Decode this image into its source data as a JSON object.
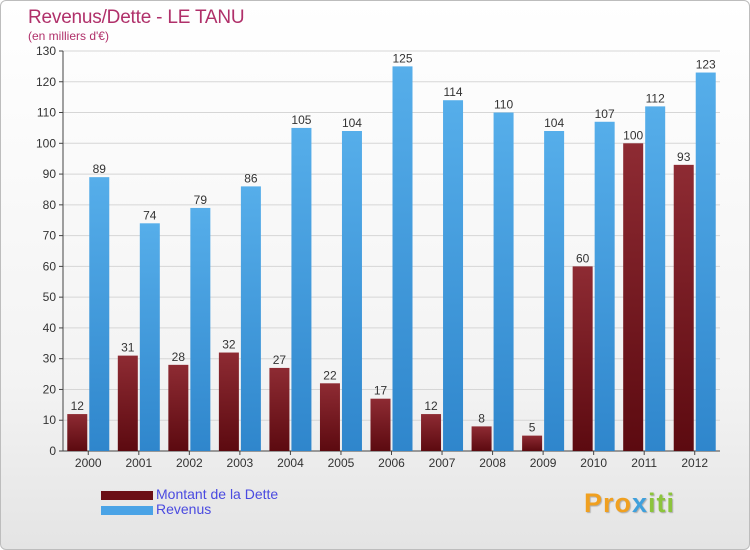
{
  "title": "Revenus/Dette - LE TANU",
  "subtitle": "(en milliers d'€)",
  "colors": {
    "dette": "#8b1a24",
    "revenus": "#4aa3e6",
    "title": "#b0306a",
    "legend_text": "#4a4ae0"
  },
  "legend": [
    {
      "label": "Montant de la Dette",
      "color": "#6b0f16"
    },
    {
      "label": "Revenus",
      "color": "#4aa3e6"
    }
  ],
  "logo": {
    "part1": "Pro",
    "part2": "x",
    "part3": "iti"
  },
  "chart_data": {
    "type": "bar",
    "title": "Revenus/Dette - LE TANU",
    "subtitle": "(en milliers d'€)",
    "categories": [
      "2000",
      "2001",
      "2002",
      "2003",
      "2004",
      "2005",
      "2006",
      "2007",
      "2008",
      "2009",
      "2010",
      "2011",
      "2012"
    ],
    "series": [
      {
        "name": "Montant de la Dette",
        "values": [
          12,
          31,
          28,
          32,
          27,
          22,
          17,
          12,
          8,
          5,
          60,
          100,
          93
        ]
      },
      {
        "name": "Revenus",
        "values": [
          89,
          74,
          79,
          86,
          105,
          104,
          125,
          114,
          110,
          104,
          107,
          112,
          123
        ]
      }
    ],
    "ylim": [
      0,
      130
    ],
    "yticks": [
      0,
      10,
      20,
      30,
      40,
      50,
      60,
      70,
      80,
      90,
      100,
      110,
      120,
      130
    ],
    "grid": true,
    "legend_position": "bottom-left"
  }
}
